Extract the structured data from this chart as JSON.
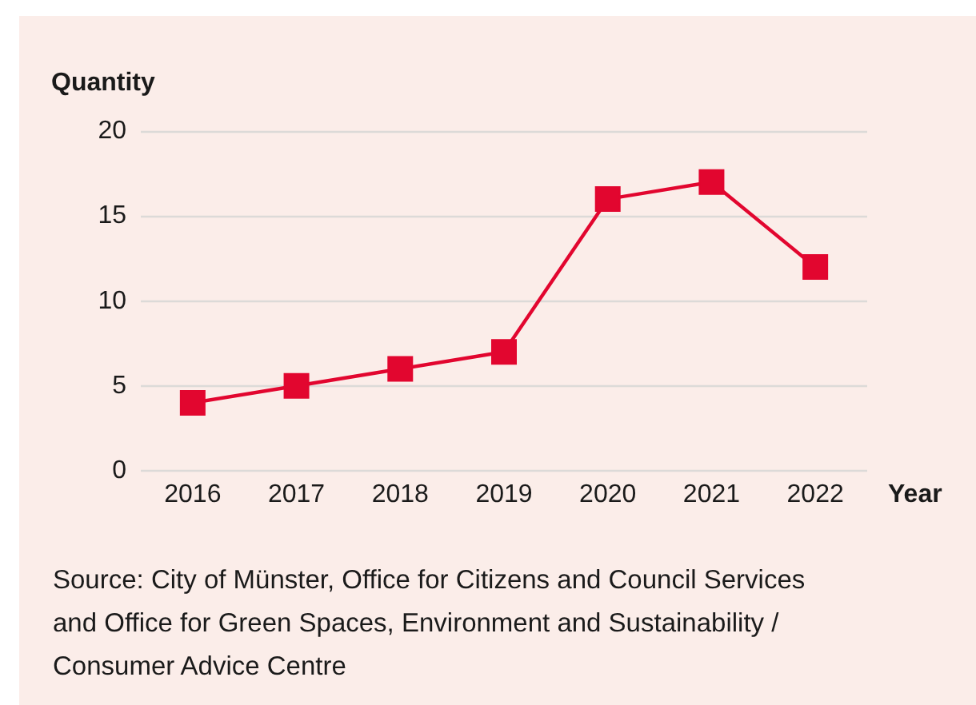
{
  "chart_data": {
    "type": "line",
    "xlabel": "Year",
    "ylabel": "Quantity",
    "categories": [
      "2016",
      "2017",
      "2018",
      "2019",
      "2020",
      "2021",
      "2022"
    ],
    "values": [
      4,
      5,
      6,
      7,
      16,
      17,
      12
    ],
    "color": "#e2062f",
    "ylim": [
      0,
      20
    ],
    "yticks": [
      0,
      5,
      10,
      15,
      20
    ],
    "grid": "y",
    "marker": "square",
    "line_style": "solid",
    "annotations": [
      "Source: City of Münster, Office for Citizens and Council Services and Office for Green Spaces, Environment and Sustainability / Consumer Advice Centre"
    ]
  }
}
